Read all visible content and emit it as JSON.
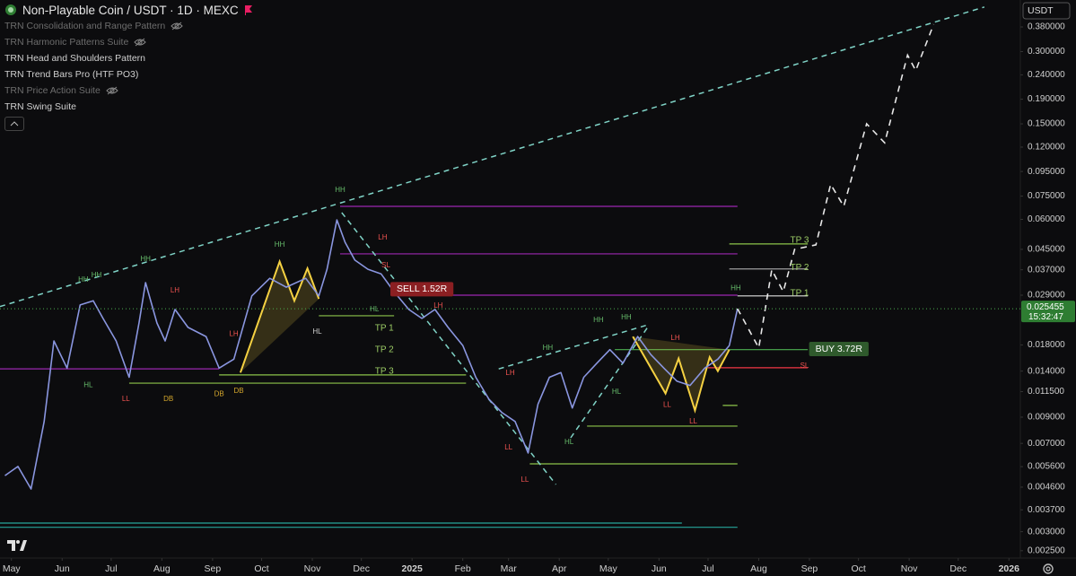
{
  "header": {
    "title": "Non-Playable Coin / USDT · 1D · MEXC",
    "indicators": [
      {
        "name": "TRN Consolidation and Range Pattern",
        "muted": true
      },
      {
        "name": "TRN Harmonic Patterns Suite",
        "muted": true
      },
      {
        "name": "TRN Head and Shoulders Pattern",
        "muted": false
      },
      {
        "name": "TRN Trend Bars Pro (HTF PO3)",
        "muted": false
      },
      {
        "name": "TRN Price Action Suite",
        "muted": true
      },
      {
        "name": "TRN Swing Suite",
        "muted": false
      }
    ]
  },
  "chart_data": {
    "type": "line",
    "log_scale": true,
    "color": "#8a96e0",
    "currency": "USDT",
    "last_price": 0.025455,
    "countdown": "15:32:47",
    "xlim": [
      -7,
      617
    ],
    "ylim": [
      0.00233,
      0.492
    ],
    "xticks": [
      {
        "value": 0,
        "label": "May"
      },
      {
        "value": 31,
        "label": "Jun"
      },
      {
        "value": 61,
        "label": "Jul"
      },
      {
        "value": 92,
        "label": "Aug"
      },
      {
        "value": 123,
        "label": "Sep"
      },
      {
        "value": 153,
        "label": "Oct"
      },
      {
        "value": 184,
        "label": "Nov"
      },
      {
        "value": 214,
        "label": "Dec"
      },
      {
        "value": 245,
        "label": "2025"
      },
      {
        "value": 276,
        "label": "Feb"
      },
      {
        "value": 304,
        "label": "Mar"
      },
      {
        "value": 335,
        "label": "Apr"
      },
      {
        "value": 365,
        "label": "May"
      },
      {
        "value": 396,
        "label": "Jun"
      },
      {
        "value": 426,
        "label": "Jul"
      },
      {
        "value": 457,
        "label": "Aug"
      },
      {
        "value": 488,
        "label": "Sep"
      },
      {
        "value": 518,
        "label": "Oct"
      },
      {
        "value": 549,
        "label": "Nov"
      },
      {
        "value": 579,
        "label": "Dec"
      },
      {
        "value": 610,
        "label": "2026"
      }
    ],
    "yticks": [
      {
        "value": 0.38,
        "label": "0.380000"
      },
      {
        "value": 0.3,
        "label": "0.300000"
      },
      {
        "value": 0.24,
        "label": "0.240000"
      },
      {
        "value": 0.19,
        "label": "0.190000"
      },
      {
        "value": 0.15,
        "label": "0.150000"
      },
      {
        "value": 0.12,
        "label": "0.120000"
      },
      {
        "value": 0.095,
        "label": "0.095000"
      },
      {
        "value": 0.075,
        "label": "0.075000"
      },
      {
        "value": 0.06,
        "label": "0.060000"
      },
      {
        "value": 0.045,
        "label": "0.045000"
      },
      {
        "value": 0.037,
        "label": "0.037000"
      },
      {
        "value": 0.029,
        "label": "0.029000"
      },
      {
        "value": 0.018,
        "label": "0.018000"
      },
      {
        "value": 0.014,
        "label": "0.014000"
      },
      {
        "value": 0.0115,
        "label": "0.011500"
      },
      {
        "value": 0.009,
        "label": "0.009000"
      },
      {
        "value": 0.007,
        "label": "0.007000"
      },
      {
        "value": 0.0056,
        "label": "0.005600"
      },
      {
        "value": 0.0046,
        "label": "0.004600"
      },
      {
        "value": 0.0037,
        "label": "0.003700"
      },
      {
        "value": 0.003,
        "label": "0.003000"
      },
      {
        "value": 0.0025,
        "label": "0.002500"
      }
    ],
    "x": [
      -4,
      4,
      12,
      20,
      26,
      34,
      42,
      50,
      56,
      64,
      72,
      78,
      82,
      89,
      94,
      100,
      108,
      119,
      127,
      136,
      147,
      158,
      168,
      180,
      188,
      193,
      199,
      204,
      210,
      218,
      226,
      234,
      243,
      251,
      259,
      267,
      276,
      284,
      292,
      300,
      308,
      316,
      322,
      329,
      336,
      343,
      350,
      358,
      366,
      374,
      383,
      391,
      399,
      407,
      415,
      424,
      432,
      439,
      444
    ],
    "values": [
      0.00514,
      0.00561,
      0.00452,
      0.00863,
      0.0187,
      0.0144,
      0.0264,
      0.0275,
      0.0232,
      0.0187,
      0.0132,
      0.0222,
      0.0327,
      0.0222,
      0.0187,
      0.0253,
      0.0213,
      0.0195,
      0.0144,
      0.0157,
      0.0288,
      0.0341,
      0.0313,
      0.0341,
      0.0288,
      0.0372,
      0.0597,
      0.0482,
      0.0406,
      0.0372,
      0.0356,
      0.03,
      0.0253,
      0.0232,
      0.0253,
      0.0213,
      0.0179,
      0.0132,
      0.0107,
      0.0094,
      0.00863,
      0.00638,
      0.0102,
      0.0132,
      0.0138,
      0.00982,
      0.0132,
      0.0151,
      0.0172,
      0.0151,
      0.0195,
      0.0164,
      0.0144,
      0.0127,
      0.0122,
      0.0144,
      0.0157,
      0.0179,
      0.025455
    ],
    "projection": {
      "color": "#e8e8e8",
      "x": [
        444,
        457,
        465,
        472,
        479,
        492,
        501,
        509,
        523,
        534,
        548,
        553,
        564
      ],
      "values": [
        0.025455,
        0.0175,
        0.037,
        0.03,
        0.045,
        0.047,
        0.084,
        0.068,
        0.15,
        0.125,
        0.29,
        0.25,
        0.39
      ]
    },
    "overlays": [
      {
        "color": "#7fd3c6",
        "x": [
          -7,
          595
        ],
        "values": [
          0.026,
          0.46
        ]
      },
      {
        "color": "#7fd3c6",
        "x": [
          202,
          333
        ],
        "values": [
          0.064,
          0.00472
        ]
      },
      {
        "color": "#7fd3c6",
        "x": [
          342,
          389
        ],
        "values": [
          0.00738,
          0.0213
        ]
      },
      {
        "color": "#7fd3c6",
        "x": [
          298,
          388
        ],
        "values": [
          0.0143,
          0.0217
        ]
      }
    ],
    "levels": [
      {
        "color": "#9c27b0",
        "x": [
          201,
          444
        ],
        "value": 0.068
      },
      {
        "color": "#9c27b0",
        "x": [
          201,
          444
        ],
        "value": 0.0431
      },
      {
        "color": "#9c27b0",
        "x": [
          234,
          444
        ],
        "value": 0.029
      },
      {
        "color": "#8bc34a",
        "x": [
          439,
          487
        ],
        "value": 0.0474
      },
      {
        "color": "#9e9e9e",
        "x": [
          439,
          487
        ],
        "value": 0.0373
      },
      {
        "color": "#e0e0e0",
        "x": [
          444,
          487
        ],
        "value": 0.0288
      },
      {
        "color": "#4caf50",
        "x": [
          369,
          487
        ],
        "value": 0.0172
      },
      {
        "color": "#f23645",
        "x": [
          426,
          487
        ],
        "value": 0.01446
      },
      {
        "color": "#8bc34a",
        "x": [
          435,
          444
        ],
        "value": 0.01007
      },
      {
        "color": "#8bc34a",
        "x": [
          352,
          444
        ],
        "value": 0.00826
      },
      {
        "color": "#8bc34a",
        "x": [
          317,
          444
        ],
        "value": 0.00575
      },
      {
        "color": "#9c27b0",
        "x": [
          -7,
          127
        ],
        "value": 0.0143
      },
      {
        "color": "#8bc34a",
        "x": [
          72,
          278
        ],
        "value": 0.01247
      },
      {
        "color": "#8bc34a",
        "x": [
          127,
          278
        ],
        "value": 0.0135
      },
      {
        "color": "#8bc34a",
        "x": [
          188,
          234
        ],
        "value": 0.0238
      },
      {
        "color": "#26a69a",
        "x": [
          -7,
          410
        ],
        "value": 0.00326
      },
      {
        "color": "#26a69a",
        "x": [
          -7,
          444
        ],
        "value": 0.00313
      }
    ],
    "patterns": [
      {
        "color": "#f5d142",
        "x": [
          140,
          164,
          173,
          181,
          188
        ],
        "values": [
          0.0138,
          0.04,
          0.0275,
          0.0375,
          0.028
        ]
      },
      {
        "color": "#f5d142",
        "x": [
          380,
          400,
          408,
          418,
          427,
          432,
          439
        ],
        "values": [
          0.0195,
          0.0113,
          0.0158,
          0.0096,
          0.016,
          0.014,
          0.0172
        ]
      }
    ],
    "annotations": [
      {
        "text": "HH",
        "x": 44,
        "y": 0.0336,
        "color": "#66bb6a"
      },
      {
        "text": "HH",
        "x": 52,
        "y": 0.0351,
        "color": "#66bb6a"
      },
      {
        "text": "HL",
        "x": 47,
        "y": 0.0122,
        "color": "#66bb6a"
      },
      {
        "text": "LL",
        "x": 70,
        "y": 0.0107,
        "color": "#ef5350"
      },
      {
        "text": "HH",
        "x": 82,
        "y": 0.0409,
        "color": "#66bb6a"
      },
      {
        "text": "LH",
        "x": 100,
        "y": 0.0303,
        "color": "#ef5350"
      },
      {
        "text": "DB",
        "x": 96,
        "y": 0.0107,
        "color": "#d4a72c"
      },
      {
        "text": "DB",
        "x": 127,
        "y": 0.0112,
        "color": "#d4a72c"
      },
      {
        "text": "DB",
        "x": 139,
        "y": 0.01156,
        "color": "#d4a72c"
      },
      {
        "text": "LH",
        "x": 136,
        "y": 0.02,
        "color": "#ef5350"
      },
      {
        "text": "HH",
        "x": 164,
        "y": 0.047,
        "color": "#66bb6a"
      },
      {
        "text": "HH",
        "x": 201,
        "y": 0.0794,
        "color": "#66bb6a"
      },
      {
        "text": "LH",
        "x": 227,
        "y": 0.0503,
        "color": "#ef5350"
      },
      {
        "text": "SL",
        "x": 229,
        "y": 0.0385,
        "color": "#ef5350"
      },
      {
        "text": "LH",
        "x": 261,
        "y": 0.0262,
        "color": "#ef5350"
      },
      {
        "text": "HL",
        "x": 222,
        "y": 0.0253,
        "color": "#66bb6a"
      },
      {
        "text": "HL",
        "x": 187,
        "y": 0.0204,
        "color": "#d0d0d0"
      },
      {
        "text": "TP 1",
        "x": 228,
        "y": 0.0211,
        "color": "#9ccc65"
      },
      {
        "text": "TP 2",
        "x": 228,
        "y": 0.0172,
        "color": "#9ccc65"
      },
      {
        "text": "TP 3",
        "x": 228,
        "y": 0.014,
        "color": "#9ccc65"
      },
      {
        "text": "LH",
        "x": 305,
        "y": 0.0137,
        "color": "#ef5350"
      },
      {
        "text": "HH",
        "x": 328,
        "y": 0.0175,
        "color": "#66bb6a"
      },
      {
        "text": "HH",
        "x": 359,
        "y": 0.0228,
        "color": "#66bb6a"
      },
      {
        "text": "HH",
        "x": 376,
        "y": 0.0234,
        "color": "#66bb6a"
      },
      {
        "text": "LL",
        "x": 304,
        "y": 0.00672,
        "color": "#ef5350"
      },
      {
        "text": "LL",
        "x": 314,
        "y": 0.00493,
        "color": "#ef5350"
      },
      {
        "text": "HL",
        "x": 341,
        "y": 0.00708,
        "color": "#66bb6a"
      },
      {
        "text": "HL",
        "x": 370,
        "y": 0.01146,
        "color": "#66bb6a"
      },
      {
        "text": "LH",
        "x": 406,
        "y": 0.0192,
        "color": "#ef5350"
      },
      {
        "text": "LL",
        "x": 401,
        "y": 0.0101,
        "color": "#ef5350"
      },
      {
        "text": "LL",
        "x": 417,
        "y": 0.00863,
        "color": "#ef5350"
      },
      {
        "text": "HH",
        "x": 443,
        "y": 0.031,
        "color": "#66bb6a"
      },
      {
        "text": "TP 3",
        "x": 482,
        "y": 0.049,
        "color": "#9ccc65"
      },
      {
        "text": "TP 2",
        "x": 482,
        "y": 0.0378,
        "color": "#9ccc65"
      },
      {
        "text": "TP 1",
        "x": 482,
        "y": 0.0295,
        "color": "#9ccc65"
      },
      {
        "text": "SL",
        "x": 485,
        "y": 0.0147,
        "color": "#ef5350"
      },
      {
        "text": "SELL 1.52R",
        "x": 251,
        "y": 0.0307,
        "color": "#8b1f22",
        "badge": true
      },
      {
        "text": "BUY 3.72R",
        "x": 506,
        "y": 0.0173,
        "color": "#2f5a2c",
        "badge": true
      }
    ]
  }
}
